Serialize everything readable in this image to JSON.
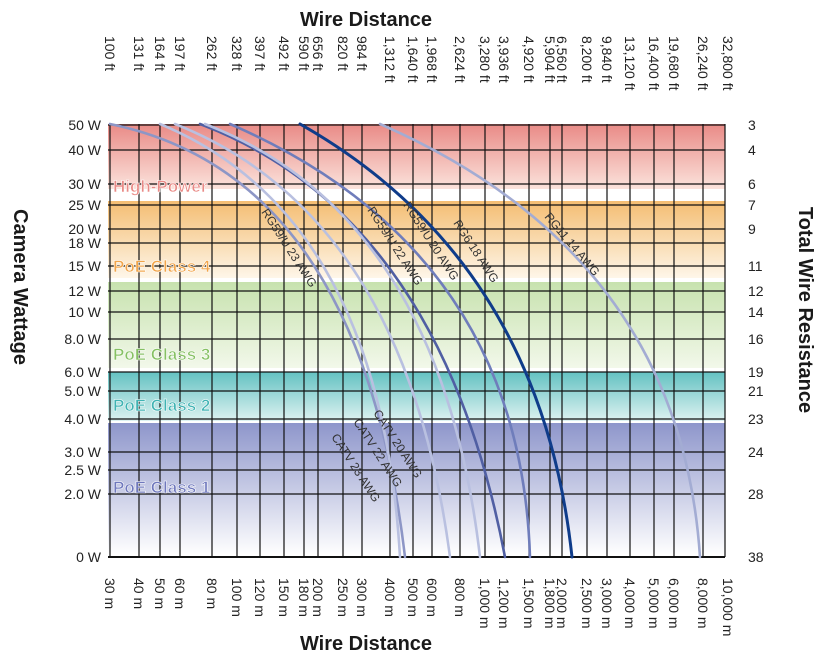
{
  "chart_data": {
    "type": "line",
    "title_top": "Wire Distance",
    "title_bottom": "Wire Distance",
    "ylabel_left": "Camera Wattage",
    "ylabel_right": "Total Wire Resistance",
    "ft_ticks": [
      "100 ft",
      "131 ft",
      "164 ft",
      "197 ft",
      "262 ft",
      "328 ft",
      "397 ft",
      "492 ft",
      "590 ft",
      "656 ft",
      "820 ft",
      "984 ft",
      "1,312 ft",
      "1,640 ft",
      "1,968 ft",
      "2,624 ft",
      "3,280 ft",
      "3,936 ft",
      "4,920 ft",
      "5,904 ft",
      "6,560 ft",
      "8,200 ft",
      "9,840 ft",
      "13,120 ft",
      "16,400 ft",
      "19,680 ft",
      "26,240 ft",
      "32,800 ft"
    ],
    "m_ticks": [
      "30 m",
      "40 m",
      "50 m",
      "60 m",
      "80 m",
      "100 m",
      "120 m",
      "150 m",
      "180 m",
      "200 m",
      "250 m",
      "300 m",
      "400 m",
      "500 m",
      "600 m",
      "800 m",
      "1,000 m",
      "1,200 m",
      "1,500 m",
      "1,800 m",
      "2,000 m",
      "2,500 m",
      "3,000 m",
      "4,000 m",
      "5,000 m",
      "6,000 m",
      "8,000 m",
      "10,000 m"
    ],
    "watt_ticks": [
      "50 W",
      "40 W",
      "30 W",
      "25 W",
      "20 W",
      "18 W",
      "15 W",
      "12 W",
      "10 W",
      "8.0 W",
      "6.0 W",
      "5.0 W",
      "4.0 W",
      "3.0 W",
      "2.5 W",
      "2.0 W",
      "0 W"
    ],
    "resistance_ticks": [
      "3",
      "4",
      "6",
      "7",
      "9",
      "11",
      "12",
      "14",
      "16",
      "19",
      "21",
      "23",
      "24",
      "28",
      "38"
    ],
    "bands": [
      {
        "label": "High-Power",
        "color": "#e98a86"
      },
      {
        "label": "PoE Class 4",
        "color": "#f2b35c"
      },
      {
        "label": "PoE Class 3",
        "color": "#9fce7e"
      },
      {
        "label": "PoE Class 2",
        "color": "#56bcbc"
      },
      {
        "label": "PoE Class 1",
        "color": "#8b93c9"
      }
    ],
    "series": [
      {
        "name": "RG59/U 23 AWG",
        "color": "#8d96c6",
        "approx_zero_watt_distance_m": 405
      },
      {
        "name": "RG59/U 22 AWG",
        "color": "#505fa3",
        "approx_zero_watt_distance_m": 510
      },
      {
        "name": "RG59/U 20 AWG",
        "color": "#0f3c8a",
        "approx_zero_watt_distance_m": 2150
      },
      {
        "name": "RG6 18 AWG",
        "color": "#6f7dbb",
        "approx_zero_watt_distance_m": 1900
      },
      {
        "name": "RG11 14 AWG",
        "color": "#a3acd3",
        "approx_zero_watt_distance_m": 7800
      },
      {
        "name": "CATV 23 AWG",
        "color": "#b9c0e0",
        "approx_zero_watt_distance_m": 400
      },
      {
        "name": "CATV 22 AWG",
        "color": "#b9c0e0",
        "approx_zero_watt_distance_m": 460
      },
      {
        "name": "CATV 20 AWG",
        "color": "#b9c0e0",
        "approx_zero_watt_distance_m": 600
      }
    ]
  }
}
